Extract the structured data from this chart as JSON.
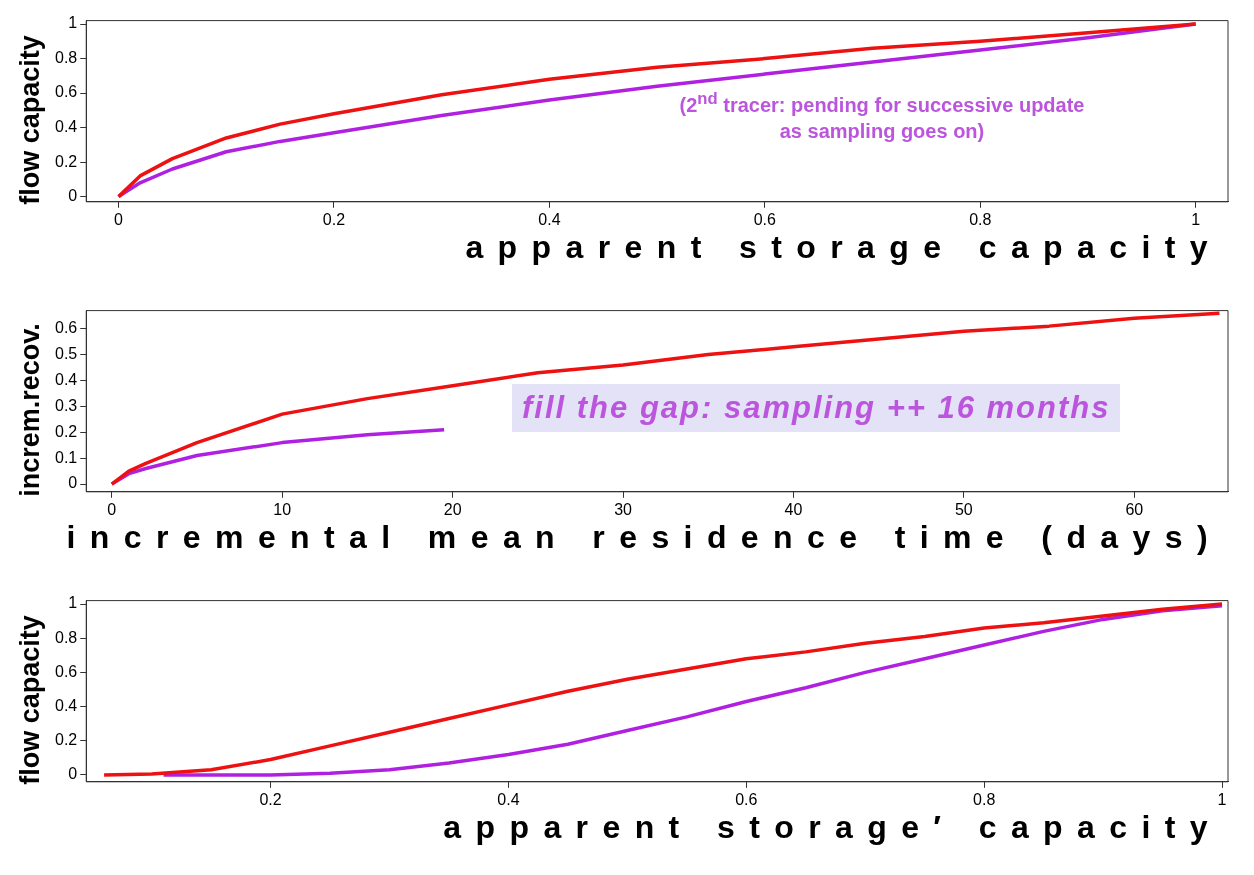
{
  "chart_data": [
    {
      "type": "line",
      "ylabel": "flow capacity",
      "xlabel": "apparent storage capacity",
      "xlim": [
        -0.03,
        1.03
      ],
      "ylim": [
        -0.03,
        1.02
      ],
      "xticks": [
        0,
        0.2,
        0.4,
        0.6,
        0.8,
        1
      ],
      "yticks": [
        0,
        0.2,
        0.4,
        0.6,
        0.8,
        1
      ],
      "grid": false,
      "legend": false,
      "marker": "none",
      "line_style": "solid",
      "annotations": [
        "(2$^{nd}$ tracer: pending for successive update as sampling goes on)"
      ],
      "series": [
        {
          "color": "#ee1111",
          "x": [
            0,
            0.02,
            0.05,
            0.1,
            0.15,
            0.2,
            0.3,
            0.4,
            0.5,
            0.6,
            0.7,
            0.8,
            0.9,
            1
          ],
          "values": [
            0,
            0.12,
            0.22,
            0.34,
            0.42,
            0.48,
            0.59,
            0.68,
            0.75,
            0.8,
            0.86,
            0.9,
            0.95,
            1
          ]
        },
        {
          "color": "#b020e0",
          "x": [
            0,
            0.02,
            0.05,
            0.1,
            0.15,
            0.2,
            0.3,
            0.4,
            0.5,
            0.6,
            0.7,
            0.8,
            0.9,
            1
          ],
          "values": [
            0,
            0.08,
            0.16,
            0.26,
            0.32,
            0.37,
            0.47,
            0.56,
            0.64,
            0.71,
            0.78,
            0.85,
            0.92,
            1
          ]
        }
      ]
    },
    {
      "type": "line",
      "ylabel": "increm.recov.",
      "xlabel": "incremental mean residence time (days)",
      "xlim": [
        -1.5,
        65.5
      ],
      "ylim": [
        -0.03,
        0.67
      ],
      "xticks": [
        0,
        10,
        20,
        30,
        40,
        50,
        60
      ],
      "yticks": [
        0,
        0.1,
        0.2,
        0.3,
        0.4,
        0.5,
        0.6
      ],
      "grid": false,
      "legend": false,
      "marker": "none",
      "line_style": "solid",
      "annotations": [
        "fill the gap: sampling ++ 16 months"
      ],
      "series": [
        {
          "color": "#ee1111",
          "x": [
            0,
            1,
            2,
            5,
            10,
            15,
            20,
            25,
            30,
            35,
            40,
            45,
            50,
            55,
            60,
            65
          ],
          "values": [
            0,
            0.05,
            0.08,
            0.16,
            0.27,
            0.33,
            0.38,
            0.43,
            0.46,
            0.5,
            0.53,
            0.56,
            0.59,
            0.61,
            0.64,
            0.66
          ]
        },
        {
          "color": "#b020e0",
          "x": [
            0,
            1,
            2,
            5,
            10,
            15,
            19.5
          ],
          "values": [
            0,
            0.04,
            0.06,
            0.11,
            0.16,
            0.19,
            0.21
          ]
        }
      ]
    },
    {
      "type": "line",
      "ylabel": "flow capacity",
      "xlabel": "apparent storage′ capacity",
      "xlim": [
        0.045,
        1.005
      ],
      "ylim": [
        -0.04,
        1.02
      ],
      "xticks": [
        0.2,
        0.4,
        0.6,
        0.8,
        1
      ],
      "yticks": [
        0,
        0.2,
        0.4,
        0.6,
        0.8,
        1
      ],
      "grid": false,
      "legend": false,
      "marker": "none",
      "line_style": "solid",
      "series": [
        {
          "color": "#ee1111",
          "x": [
            0.06,
            0.1,
            0.15,
            0.2,
            0.25,
            0.3,
            0.35,
            0.4,
            0.45,
            0.5,
            0.55,
            0.6,
            0.65,
            0.7,
            0.75,
            0.8,
            0.85,
            0.9,
            0.95,
            1
          ],
          "values": [
            0,
            0.005,
            0.03,
            0.09,
            0.17,
            0.25,
            0.33,
            0.41,
            0.49,
            0.56,
            0.62,
            0.68,
            0.72,
            0.77,
            0.81,
            0.86,
            0.89,
            0.93,
            0.97,
            1
          ]
        },
        {
          "color": "#b020e0",
          "x": [
            0.11,
            0.15,
            0.2,
            0.25,
            0.3,
            0.35,
            0.4,
            0.45,
            0.5,
            0.55,
            0.6,
            0.65,
            0.7,
            0.75,
            0.8,
            0.85,
            0.9,
            0.95,
            1
          ],
          "values": [
            0,
            0,
            0,
            0.01,
            0.03,
            0.07,
            0.12,
            0.18,
            0.26,
            0.34,
            0.43,
            0.51,
            0.6,
            0.68,
            0.76,
            0.84,
            0.91,
            0.96,
            0.99
          ]
        }
      ]
    }
  ]
}
